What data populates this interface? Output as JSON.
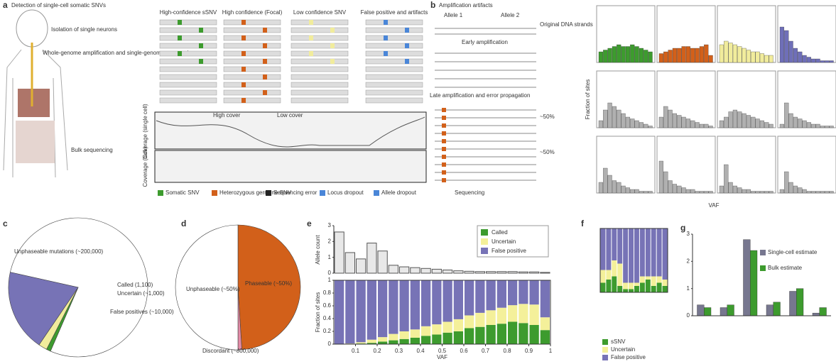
{
  "panel_a": {
    "label": "a",
    "title": "Detection of single-cell somatic SNVs",
    "body_labels": [
      "Isolation of single neurons",
      "Whole-genome amplification and single-genome sequencing",
      "Bulk sequencing"
    ],
    "columns": [
      "High-confidence sSNV",
      "High confidence (Focal)",
      "Low confidence SNV",
      "False positive and artifacts"
    ],
    "coverage": [
      "Coverage (single cell)",
      "Coverage (bulk)"
    ],
    "cover_labels": [
      "High cover",
      "Low cover"
    ],
    "legend": [
      "Somatic SNV",
      "Heterozygous germline SNV",
      "Sequencing error",
      "Locus dropout",
      "Allele dropout"
    ]
  },
  "panel_b": {
    "label": "b",
    "title": "Amplification artifacts",
    "alleles": [
      "Allele 1",
      "Allele 2"
    ],
    "strands": "Original DNA strands",
    "steps": [
      "Early amplification",
      "Late amplification and error propagation",
      "Sequencing"
    ],
    "fractions": [
      "~50%",
      "~50%"
    ]
  },
  "chart_data": [
    {
      "type": "histogram_grid",
      "xlabel": "VAF",
      "ylabel": "Fraction of sites",
      "ylim": [
        0,
        1
      ],
      "panels": [
        {
          "color": "#3d9b2e",
          "values": [
            0.3,
            0.35,
            0.4,
            0.45,
            0.5,
            0.45,
            0.45,
            0.5,
            0.45,
            0.4,
            0.35,
            0.3
          ]
        },
        {
          "color": "#d2601a",
          "values": [
            0.25,
            0.3,
            0.35,
            0.4,
            0.4,
            0.45,
            0.45,
            0.4,
            0.4,
            0.45,
            0.5,
            0.2
          ]
        },
        {
          "color": "#f1ec9c",
          "values": [
            0.5,
            0.6,
            0.55,
            0.5,
            0.45,
            0.4,
            0.35,
            0.3,
            0.3,
            0.25,
            0.2,
            0.2
          ]
        },
        {
          "color": "#6f6fb8",
          "values": [
            1,
            0.9,
            0.6,
            0.4,
            0.3,
            0.2,
            0.15,
            0.1,
            0.1,
            0.05,
            0.05,
            0.05
          ]
        },
        {
          "color": "#b0b0b0",
          "values": [
            0.2,
            0.5,
            0.7,
            0.6,
            0.5,
            0.4,
            0.3,
            0.25,
            0.2,
            0.15,
            0.1,
            0.05
          ]
        },
        {
          "color": "#b0b0b0",
          "values": [
            0.3,
            0.6,
            0.5,
            0.4,
            0.35,
            0.3,
            0.25,
            0.2,
            0.15,
            0.1,
            0.1,
            0.05
          ]
        },
        {
          "color": "#b0b0b0",
          "values": [
            0.2,
            0.3,
            0.45,
            0.5,
            0.45,
            0.4,
            0.35,
            0.3,
            0.25,
            0.2,
            0.15,
            0.1
          ]
        },
        {
          "color": "#b0b0b0",
          "values": [
            0.1,
            0.7,
            0.4,
            0.3,
            0.25,
            0.2,
            0.15,
            0.1,
            0.1,
            0.05,
            0.05,
            0.05
          ]
        },
        {
          "color": "#b0b0b0",
          "values": [
            0.3,
            0.7,
            0.5,
            0.35,
            0.3,
            0.2,
            0.15,
            0.1,
            0.1,
            0.05,
            0.05,
            0.05
          ]
        },
        {
          "color": "#b0b0b0",
          "values": [
            0.9,
            0.6,
            0.35,
            0.25,
            0.2,
            0.15,
            0.1,
            0.1,
            0.05,
            0.05,
            0.05,
            0.05
          ]
        },
        {
          "color": "#b0b0b0",
          "values": [
            0.2,
            0.8,
            0.3,
            0.2,
            0.15,
            0.1,
            0.1,
            0.05,
            0.05,
            0.05,
            0.05,
            0.05
          ]
        },
        {
          "color": "#b0b0b0",
          "values": [
            0.1,
            0.6,
            0.3,
            0.2,
            0.15,
            0.1,
            0.05,
            0.05,
            0.05,
            0.05,
            0.05,
            0.05
          ]
        }
      ]
    },
    {
      "type": "pie",
      "label": "c",
      "slices": [
        {
          "name": "Unphaseable mutations (~200,000)",
          "value": 78,
          "color": "#ffffff"
        },
        {
          "name": "Called (1,100)",
          "value": 1,
          "color": "#3d9b2e"
        },
        {
          "name": "Uncertain (~1,000)",
          "value": 2,
          "color": "#f1ec9c"
        },
        {
          "name": "False positives (~10,000)",
          "value": 19,
          "color": "#7773b6"
        }
      ]
    },
    {
      "type": "pie",
      "label": "d",
      "slices": [
        {
          "name": "Phaseable (~50%)",
          "value": 49,
          "color": "#d2601a"
        },
        {
          "name": "Discordant (~800,000)",
          "value": 1,
          "color": "#e38aa6"
        },
        {
          "name": "Unphaseable (~50%)",
          "value": 50,
          "color": "#ffffff"
        }
      ]
    },
    {
      "type": "histogram",
      "label": "e",
      "ylabel": "Allele count",
      "ylim": [
        0,
        3
      ],
      "yticks": [
        0,
        1,
        2,
        3
      ],
      "bins": [
        0,
        0.05,
        0.1,
        0.15,
        0.2,
        0.25,
        0.3,
        0.35,
        0.4,
        0.45,
        0.5,
        0.55,
        0.6,
        0.65,
        0.7,
        0.75,
        0.8,
        0.85,
        0.9,
        0.95,
        1
      ],
      "values": [
        2.6,
        1.3,
        0.9,
        1.9,
        1.4,
        0.5,
        0.4,
        0.35,
        0.3,
        0.25,
        0.2,
        0.15,
        0.12,
        0.1,
        0.1,
        0.1,
        0.1,
        0.08,
        0.08,
        0.05
      ]
    },
    {
      "type": "stacked_histogram",
      "xlabel": "VAF",
      "ylabel": "Fraction of sites",
      "ylim": [
        0,
        1
      ],
      "yticks": [
        0,
        0.2,
        0.4,
        0.6,
        0.8,
        1
      ],
      "xlim": [
        0,
        1
      ],
      "xticks": [
        0.1,
        0.2,
        0.3,
        0.4,
        0.5,
        0.6,
        0.7,
        0.8,
        0.9,
        1
      ],
      "bins": [
        0,
        0.05,
        0.1,
        0.15,
        0.2,
        0.25,
        0.3,
        0.35,
        0.4,
        0.45,
        0.5,
        0.55,
        0.6,
        0.65,
        0.7,
        0.75,
        0.8,
        0.85,
        0.9,
        0.95,
        1
      ],
      "legend_position": "upper right",
      "series": [
        {
          "name": "Called",
          "color": "#3d9b2e",
          "values": [
            0,
            0,
            0.01,
            0.02,
            0.04,
            0.06,
            0.08,
            0.1,
            0.13,
            0.15,
            0.18,
            0.2,
            0.25,
            0.27,
            0.3,
            0.32,
            0.35,
            0.33,
            0.3,
            0.22
          ]
        },
        {
          "name": "Uncertain",
          "color": "#f4f09a",
          "values": [
            0,
            0.01,
            0.02,
            0.05,
            0.07,
            0.1,
            0.12,
            0.13,
            0.15,
            0.16,
            0.17,
            0.19,
            0.2,
            0.22,
            0.23,
            0.25,
            0.26,
            0.3,
            0.32,
            0.2
          ]
        },
        {
          "name": "False positive",
          "color": "#7773b6",
          "values": [
            1,
            0.99,
            0.97,
            0.93,
            0.89,
            0.84,
            0.8,
            0.77,
            0.72,
            0.69,
            0.65,
            0.61,
            0.55,
            0.51,
            0.47,
            0.43,
            0.39,
            0.37,
            0.38,
            0.58
          ]
        }
      ]
    },
    {
      "type": "stacked_bar",
      "label": "f",
      "ylim": [
        0,
        1
      ],
      "series": [
        {
          "name": "sSNV",
          "color": "#3d9b2e",
          "values": [
            0.15,
            0.2,
            0.25,
            0.1,
            0.05,
            0.05,
            0.1,
            0.15,
            0.2,
            0.1,
            0.15,
            0.1
          ]
        },
        {
          "name": "Uncertain",
          "color": "#f4f09a",
          "values": [
            0.2,
            0.15,
            0.25,
            0.35,
            0.1,
            0.1,
            0.05,
            0.1,
            0.05,
            0.15,
            0.1,
            0.1
          ]
        },
        {
          "name": "False positive",
          "color": "#7773b6",
          "values": [
            0.65,
            0.65,
            0.5,
            0.55,
            0.85,
            0.85,
            0.85,
            0.75,
            0.75,
            0.75,
            0.75,
            0.8
          ]
        }
      ]
    },
    {
      "type": "grouped_bar",
      "label": "g",
      "ylim": [
        0,
        3
      ],
      "yticks": [
        0,
        1,
        2,
        3
      ],
      "legend_position": "upper right",
      "series": [
        {
          "name": "Single-cell estimate",
          "color": "#77778f",
          "values": [
            0.4,
            0.3,
            2.8,
            0.4,
            0.9,
            0.1
          ]
        },
        {
          "name": "Bulk estimate",
          "color": "#3d9b2e",
          "values": [
            0.3,
            0.4,
            2.4,
            0.5,
            1.0,
            0.3
          ]
        }
      ]
    }
  ]
}
